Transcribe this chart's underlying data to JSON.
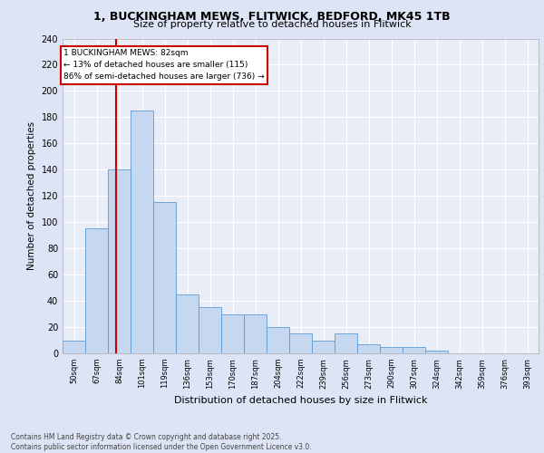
{
  "title1": "1, BUCKINGHAM MEWS, FLITWICK, BEDFORD, MK45 1TB",
  "title2": "Size of property relative to detached houses in Flitwick",
  "xlabel": "Distribution of detached houses by size in Flitwick",
  "ylabel": "Number of detached properties",
  "categories": [
    "50sqm",
    "67sqm",
    "84sqm",
    "101sqm",
    "119sqm",
    "136sqm",
    "153sqm",
    "170sqm",
    "187sqm",
    "204sqm",
    "222sqm",
    "239sqm",
    "256sqm",
    "273sqm",
    "290sqm",
    "307sqm",
    "324sqm",
    "342sqm",
    "359sqm",
    "376sqm",
    "393sqm"
  ],
  "values": [
    10,
    95,
    140,
    185,
    115,
    45,
    35,
    30,
    30,
    20,
    15,
    10,
    15,
    7,
    5,
    5,
    2,
    0,
    0,
    0,
    0
  ],
  "bar_color": "#c5d8f0",
  "bar_edge_color": "#5b9bd5",
  "background_color": "#e8edf8",
  "grid_color": "#ffffff",
  "annotation_box_color": "#ffffff",
  "annotation_box_edge": "#cc0000",
  "annotation_text": "1 BUCKINGHAM MEWS: 82sqm\n← 13% of detached houses are smaller (115)\n86% of semi-detached houses are larger (736) →",
  "footer": "Contains HM Land Registry data © Crown copyright and database right 2025.\nContains public sector information licensed under the Open Government Licence v3.0.",
  "ylim": [
    0,
    240
  ],
  "yticks": [
    0,
    20,
    40,
    60,
    80,
    100,
    120,
    140,
    160,
    180,
    200,
    220,
    240
  ],
  "fig_bg": "#dce4f5"
}
